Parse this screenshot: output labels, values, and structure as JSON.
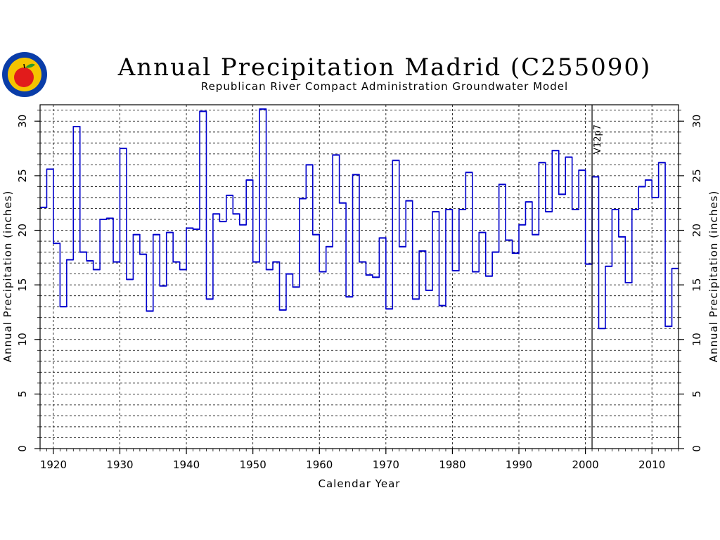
{
  "colors": {
    "series": "#0000cc",
    "background": "#ffffff",
    "axis": "#000000"
  },
  "logo": {
    "icon": "apple-seal-icon",
    "ring_color": "#0a3da8",
    "fill_color": "#f5c400",
    "apple_color": "#e21b1b"
  },
  "chart_data": {
    "type": "step-line",
    "title": "Annual Precipitation Madrid (C255090)",
    "subtitle": "Republican River Compact Administration Groundwater Model",
    "xlabel": "Calendar Year",
    "ylabel": "Annual Precipitation (inches)",
    "ylabel_right": "Annual Precipitation (inches)",
    "xlim": [
      1918,
      2014
    ],
    "ylim": [
      0,
      31.5
    ],
    "xticks": [
      "1920",
      "1930",
      "1940",
      "1950",
      "1960",
      "1970",
      "1980",
      "1990",
      "2000",
      "2010"
    ],
    "yticks": [
      "0",
      "5",
      "10",
      "15",
      "20",
      "25",
      "30"
    ],
    "grid": true,
    "annotation": {
      "label": "V12p7",
      "x": 2001
    },
    "x": [
      1918,
      1919,
      1920,
      1921,
      1922,
      1923,
      1924,
      1925,
      1926,
      1927,
      1928,
      1929,
      1930,
      1931,
      1932,
      1933,
      1934,
      1935,
      1936,
      1937,
      1938,
      1939,
      1940,
      1941,
      1942,
      1943,
      1944,
      1945,
      1946,
      1947,
      1948,
      1949,
      1950,
      1951,
      1952,
      1953,
      1954,
      1955,
      1956,
      1957,
      1958,
      1959,
      1960,
      1961,
      1962,
      1963,
      1964,
      1965,
      1966,
      1967,
      1968,
      1969,
      1970,
      1971,
      1972,
      1973,
      1974,
      1975,
      1976,
      1977,
      1978,
      1979,
      1980,
      1981,
      1982,
      1983,
      1984,
      1985,
      1986,
      1987,
      1988,
      1989,
      1990,
      1991,
      1992,
      1993,
      1994,
      1995,
      1996,
      1997,
      1998,
      1999,
      2000,
      2001,
      2002,
      2003,
      2004,
      2005,
      2006,
      2007,
      2008,
      2009,
      2010,
      2011,
      2012,
      2013
    ],
    "values": [
      22.1,
      25.6,
      18.8,
      13.0,
      17.3,
      29.5,
      18.0,
      17.2,
      16.4,
      21.0,
      21.1,
      17.1,
      27.5,
      15.5,
      19.6,
      17.8,
      12.6,
      19.6,
      14.9,
      19.8,
      17.1,
      16.4,
      20.2,
      20.1,
      30.9,
      13.7,
      21.5,
      20.8,
      23.2,
      21.5,
      20.5,
      24.6,
      17.1,
      31.1,
      16.4,
      17.1,
      12.7,
      16.0,
      14.8,
      22.9,
      26.0,
      19.6,
      16.2,
      18.5,
      26.9,
      22.5,
      13.9,
      25.1,
      17.1,
      15.9,
      15.7,
      19.3,
      12.8,
      26.4,
      18.5,
      22.7,
      13.7,
      18.1,
      14.5,
      21.7,
      13.1,
      21.9,
      16.3,
      21.9,
      25.3,
      16.2,
      19.8,
      15.8,
      18.0,
      24.2,
      19.1,
      17.9,
      20.5,
      22.6,
      19.6,
      26.2,
      21.7,
      27.3,
      23.3,
      26.7,
      21.9,
      25.5,
      16.9,
      24.9,
      11.0,
      16.7,
      21.9,
      19.4,
      15.2,
      21.9,
      24.0,
      24.6,
      23.0,
      26.2,
      11.2,
      16.5
    ]
  }
}
